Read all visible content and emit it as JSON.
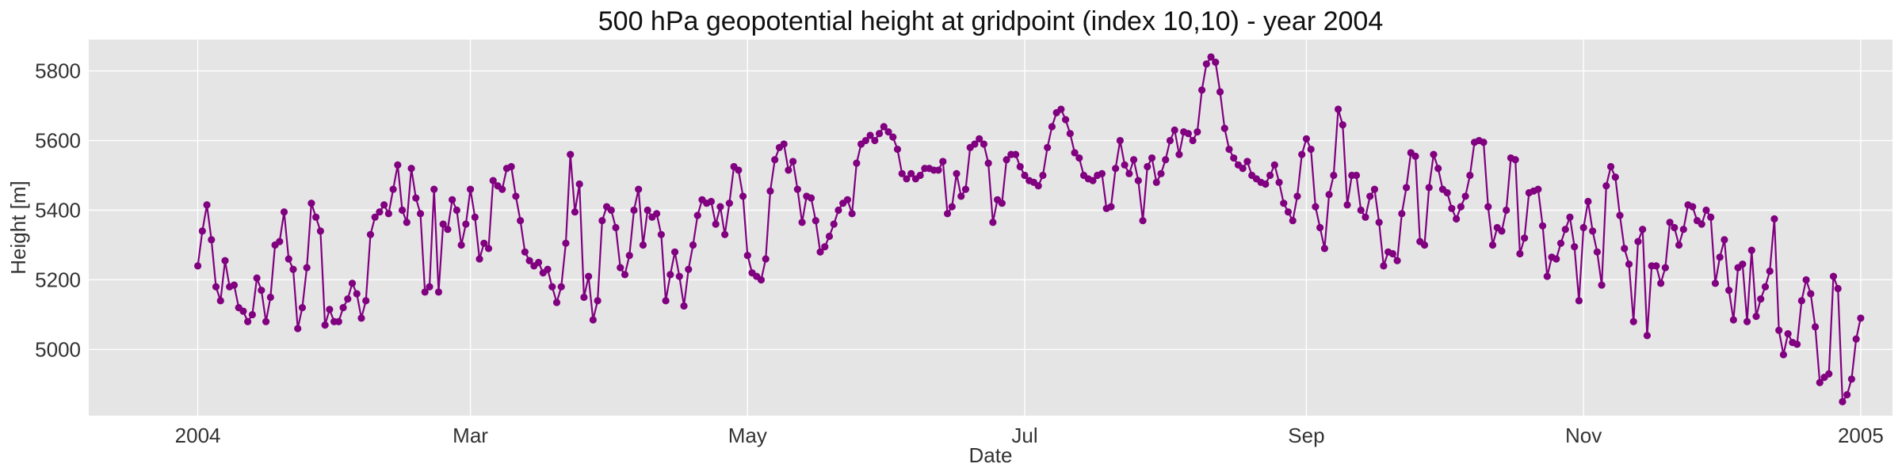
{
  "chart_data": {
    "type": "line",
    "title": "500 hPa geopotential height at gridpoint (index 10,10) - year 2004",
    "xlabel": "Date",
    "ylabel": "Height [m]",
    "x_start": "2004-01-01",
    "x_end": "2004-12-31",
    "x_step_days": 1,
    "x_ticks": [
      {
        "date": "2004-01-01",
        "label": "2004"
      },
      {
        "date": "2004-03-01",
        "label": "Mar"
      },
      {
        "date": "2004-05-01",
        "label": "May"
      },
      {
        "date": "2004-07-01",
        "label": "Jul"
      },
      {
        "date": "2004-09-01",
        "label": "Sep"
      },
      {
        "date": "2004-11-01",
        "label": "Nov"
      },
      {
        "date": "2005-01-01",
        "label": "2005"
      }
    ],
    "y_ticks": [
      5000,
      5200,
      5400,
      5600,
      5800
    ],
    "ylim": [
      4810,
      5890
    ],
    "xlim": [
      "2003-12-08",
      "2005-01-08"
    ],
    "grid": true,
    "colors": {
      "series": "#800080",
      "plot_background": "#e5e5e5",
      "grid": "#ffffff"
    },
    "series": [
      {
        "values": [
          5240,
          5340,
          5415,
          5315,
          5180,
          5140,
          5255,
          5180,
          5185,
          5120,
          5110,
          5080,
          5100,
          5205,
          5170,
          5080,
          5150,
          5300,
          5310,
          5395,
          5260,
          5230,
          5060,
          5120,
          5235,
          5420,
          5380,
          5340,
          5070,
          5115,
          5080,
          5080,
          5120,
          5145,
          5190,
          5160,
          5090,
          5140,
          5330,
          5380,
          5395,
          5415,
          5390,
          5460,
          5530,
          5400,
          5365,
          5520,
          5435,
          5390,
          5165,
          5180,
          5460,
          5165,
          5360,
          5345,
          5430,
          5400,
          5300,
          5360,
          5460,
          5380,
          5260,
          5305,
          5290,
          5485,
          5470,
          5460,
          5520,
          5525,
          5440,
          5370,
          5280,
          5255,
          5240,
          5250,
          5220,
          5230,
          5180,
          5135,
          5180,
          5305,
          5560,
          5395,
          5475,
          5150,
          5210,
          5085,
          5140,
          5370,
          5410,
          5400,
          5350,
          5235,
          5215,
          5270,
          5400,
          5460,
          5300,
          5400,
          5380,
          5390,
          5330,
          5140,
          5215,
          5280,
          5210,
          5125,
          5230,
          5300,
          5385,
          5430,
          5420,
          5425,
          5360,
          5410,
          5330,
          5420,
          5525,
          5515,
          5440,
          5270,
          5220,
          5210,
          5200,
          5260,
          5455,
          5545,
          5580,
          5590,
          5515,
          5540,
          5460,
          5365,
          5440,
          5435,
          5370,
          5280,
          5295,
          5325,
          5360,
          5400,
          5420,
          5430,
          5390,
          5535,
          5590,
          5600,
          5615,
          5600,
          5620,
          5640,
          5625,
          5610,
          5575,
          5505,
          5490,
          5505,
          5490,
          5500,
          5520,
          5520,
          5515,
          5515,
          5540,
          5390,
          5410,
          5505,
          5440,
          5460,
          5580,
          5590,
          5605,
          5590,
          5535,
          5365,
          5430,
          5420,
          5545,
          5560,
          5560,
          5525,
          5500,
          5485,
          5480,
          5470,
          5500,
          5580,
          5640,
          5680,
          5690,
          5660,
          5620,
          5565,
          5550,
          5500,
          5490,
          5485,
          5500,
          5505,
          5405,
          5410,
          5520,
          5600,
          5530,
          5505,
          5545,
          5485,
          5370,
          5525,
          5550,
          5480,
          5505,
          5545,
          5600,
          5630,
          5560,
          5625,
          5620,
          5600,
          5625,
          5745,
          5820,
          5840,
          5825,
          5740,
          5635,
          5575,
          5550,
          5530,
          5520,
          5540,
          5500,
          5490,
          5480,
          5475,
          5500,
          5530,
          5480,
          5420,
          5395,
          5370,
          5440,
          5560,
          5605,
          5575,
          5410,
          5350,
          5290,
          5445,
          5500,
          5690,
          5645,
          5415,
          5500,
          5500,
          5400,
          5380,
          5440,
          5460,
          5365,
          5240,
          5280,
          5275,
          5255,
          5390,
          5465,
          5565,
          5555,
          5310,
          5300,
          5465,
          5560,
          5520,
          5460,
          5450,
          5405,
          5375,
          5410,
          5440,
          5500,
          5595,
          5600,
          5595,
          5410,
          5300,
          5350,
          5340,
          5400,
          5550,
          5545,
          5275,
          5320,
          5450,
          5455,
          5460,
          5355,
          5210,
          5265,
          5260,
          5305,
          5345,
          5380,
          5295,
          5140,
          5350,
          5425,
          5340,
          5280,
          5185,
          5470,
          5525,
          5495,
          5385,
          5290,
          5245,
          5080,
          5310,
          5345,
          5040,
          5240,
          5240,
          5190,
          5235,
          5365,
          5350,
          5300,
          5345,
          5415,
          5410,
          5370,
          5360,
          5400,
          5380,
          5190,
          5265,
          5315,
          5170,
          5085,
          5235,
          5245,
          5080,
          5285,
          5095,
          5145,
          5180,
          5225,
          5375,
          5055,
          4985,
          5045,
          5020,
          5015,
          5140,
          5200,
          5160,
          5065,
          4905,
          4920,
          4930,
          5210,
          5175,
          4850,
          4870,
          4915,
          5030,
          5090
        ]
      }
    ]
  }
}
